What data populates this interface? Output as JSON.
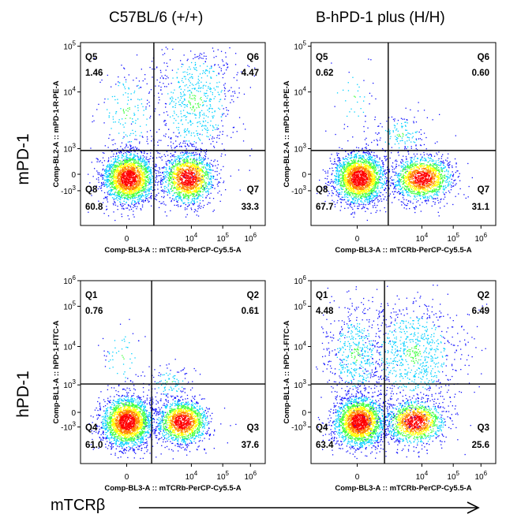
{
  "column_titles": [
    "C57BL/6 (+/+)",
    "B-hPD-1 plus (H/H)"
  ],
  "row_titles": [
    "mPD-1",
    "hPD-1"
  ],
  "x_marker_label": "mTCRβ",
  "colors": {
    "density": [
      "#1010ff",
      "#00d0ff",
      "#40ff40",
      "#ffff00",
      "#ff8000",
      "#ff0000"
    ],
    "gate": "#000000"
  },
  "chart_data": [
    {
      "type": "scatter",
      "ylabel": "Comp-BL2-A :: mPD-1-R-PE-A",
      "xlabel": "Comp-BL3-A :: mTCRb-PerCP-Cy5.5-A",
      "y_ticks": [
        "10^5",
        "10^4",
        "10^3",
        "0",
        "-10^3"
      ],
      "x_ticks": [
        "0",
        "10^4",
        "10^5",
        "10^6"
      ],
      "quadrants": [
        {
          "name": "Q5",
          "value": "1.46"
        },
        {
          "name": "Q6",
          "value": "4.47"
        },
        {
          "name": "Q7",
          "value": "33.3"
        },
        {
          "name": "Q8",
          "value": "60.8"
        }
      ]
    },
    {
      "type": "scatter",
      "ylabel": "Comp-BL2-A :: mPD-1-R-PE-A",
      "xlabel": "Comp-BL3-A :: mTCRb-PerCP-Cy5.5-A",
      "y_ticks": [
        "10^5",
        "10^4",
        "10^3",
        "0",
        "-10^3"
      ],
      "x_ticks": [
        "0",
        "10^4",
        "10^5",
        "10^6"
      ],
      "quadrants": [
        {
          "name": "Q5",
          "value": "0.62"
        },
        {
          "name": "Q6",
          "value": "0.60"
        },
        {
          "name": "Q7",
          "value": "31.1"
        },
        {
          "name": "Q8",
          "value": "67.7"
        }
      ]
    },
    {
      "type": "scatter",
      "ylabel": "Comp-BL1-A :: hPD-1-FITC-A",
      "xlabel": "Comp-BL3-A :: mTCRb-PerCP-Cy5.5-A",
      "y_ticks": [
        "10^6",
        "10^5",
        "10^4",
        "10^3",
        "0",
        "-10^3"
      ],
      "x_ticks": [
        "0",
        "10^4",
        "10^5",
        "10^6"
      ],
      "quadrants": [
        {
          "name": "Q1",
          "value": "0.76"
        },
        {
          "name": "Q2",
          "value": "0.61"
        },
        {
          "name": "Q3",
          "value": "37.6"
        },
        {
          "name": "Q4",
          "value": "61.0"
        }
      ]
    },
    {
      "type": "scatter",
      "ylabel": "Comp-BL1-A :: hPD-1-FITC-A",
      "xlabel": "Comp-BL3-A :: mTCRb-PerCP-Cy5.5-A",
      "y_ticks": [
        "10^6",
        "10^5",
        "10^4",
        "10^3",
        "0",
        "-10^3"
      ],
      "x_ticks": [
        "0",
        "10^4",
        "10^5",
        "10^6"
      ],
      "quadrants": [
        {
          "name": "Q1",
          "value": "4.48"
        },
        {
          "name": "Q2",
          "value": "6.49"
        },
        {
          "name": "Q3",
          "value": "25.6"
        },
        {
          "name": "Q4",
          "value": "63.4"
        }
      ]
    }
  ]
}
